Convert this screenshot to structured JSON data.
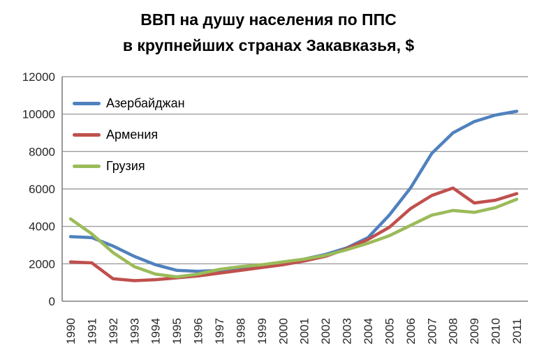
{
  "title_line1": "ВВП на душу населения по ППС",
  "title_line2": "в крупнейших странах Закавказья, $",
  "chart_data": {
    "type": "line",
    "title": "ВВП на душу населения по ППС в крупнейших странах Закавказья, $",
    "categories": [
      "1990",
      "1991",
      "1992",
      "1993",
      "1994",
      "1995",
      "1996",
      "1997",
      "1998",
      "1999",
      "2000",
      "2001",
      "2002",
      "2003",
      "2004",
      "2005",
      "2006",
      "2007",
      "2008",
      "2009",
      "2010",
      "2011"
    ],
    "series": [
      {
        "name": "Азербайджан",
        "color": "#4F81BD",
        "values": [
          3450,
          3400,
          2950,
          2400,
          1950,
          1650,
          1600,
          1650,
          1750,
          1900,
          2050,
          2250,
          2500,
          2850,
          3400,
          4600,
          6050,
          7900,
          9000,
          9600,
          9950,
          10150
        ]
      },
      {
        "name": "Армения",
        "color": "#C0504D",
        "values": [
          2100,
          2050,
          1200,
          1100,
          1150,
          1250,
          1350,
          1500,
          1650,
          1800,
          1950,
          2150,
          2400,
          2800,
          3300,
          3950,
          4950,
          5650,
          6050,
          5250,
          5400,
          5750
        ]
      },
      {
        "name": "Грузия",
        "color": "#9BBB59",
        "values": [
          4400,
          3600,
          2600,
          1850,
          1450,
          1300,
          1450,
          1700,
          1850,
          1950,
          2100,
          2250,
          2450,
          2750,
          3100,
          3500,
          4050,
          4600,
          4850,
          4750,
          5000,
          5450
        ]
      }
    ],
    "xlabel": "",
    "ylabel": "",
    "ylim": [
      0,
      12000
    ],
    "y_ticks": [
      0,
      2000,
      4000,
      6000,
      8000,
      10000,
      12000
    ],
    "grid": "horizontal",
    "legend_position": "inside-top-left",
    "colors": {
      "gridline": "#8C8C8C",
      "axis": "#808080",
      "tick_text": "#262626",
      "background": "#FFFFFF"
    }
  }
}
